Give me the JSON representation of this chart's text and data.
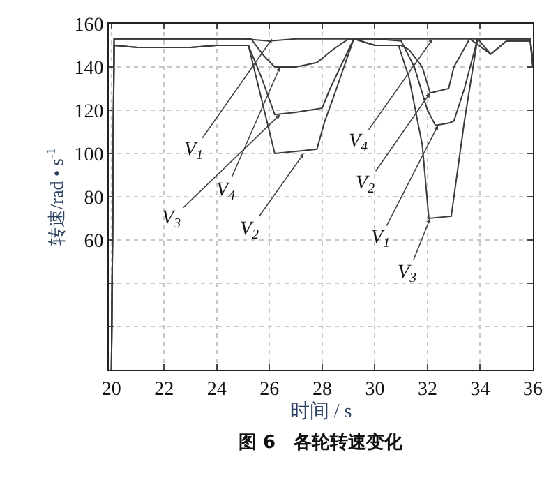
{
  "chart_data": {
    "type": "line",
    "xlabel": "时间 / s",
    "ylabel": "转速/rad • s$^{-1}$",
    "xlim": [
      19.9,
      36
    ],
    "xticks": [
      20,
      22,
      24,
      26,
      28,
      30,
      32,
      34,
      36
    ],
    "ylim": [
      0,
      160
    ],
    "yticks": [
      {
        "value": 0,
        "label": null
      },
      {
        "value": 20,
        "label": null
      },
      {
        "value": 40,
        "label": null
      },
      60,
      80,
      100,
      120,
      140,
      160
    ],
    "grid": true,
    "marker": "none",
    "line_style": "solid",
    "series": [
      {
        "color": "#3a3a3a",
        "x": [
          20,
          20.1,
          21,
          22,
          23,
          24,
          25,
          26,
          27,
          28,
          29,
          30,
          31,
          31.5,
          32,
          32.3,
          32.8,
          33.0,
          33.4,
          33.9,
          34.5,
          35,
          35.9,
          36
        ],
        "values": [
          0,
          153,
          153,
          153,
          153,
          153,
          153,
          152,
          153,
          153,
          153,
          153,
          152,
          140,
          120,
          113,
          114,
          115,
          130,
          153,
          153,
          153,
          153,
          142
        ]
      },
      {
        "color": "#3a3a3a",
        "x": [
          20,
          20.1,
          21,
          22,
          23,
          24,
          25,
          25.2,
          25.6,
          26.2,
          27,
          27.8,
          28.1,
          28.4,
          29.2,
          30,
          31,
          31.3,
          31.8,
          32.1,
          32.8,
          33.0,
          33.6,
          34.4,
          35,
          35.9,
          36
        ],
        "values": [
          0,
          150,
          149,
          149,
          149,
          150,
          150,
          150,
          130,
          100,
          101,
          102,
          115,
          125,
          153,
          150,
          150,
          148,
          140,
          128,
          130,
          140,
          153,
          146,
          152,
          152,
          140
        ]
      },
      {
        "color": "#3a3a3a",
        "x": [
          20,
          20.1,
          21,
          22,
          23,
          24,
          25,
          25.2,
          25.7,
          26.2,
          27,
          28,
          28.3,
          29.2,
          30,
          30.9,
          31.3,
          31.8,
          32.05,
          32.9,
          33.4,
          33.9,
          34.4,
          35,
          35.9,
          36
        ],
        "values": [
          0,
          150,
          149,
          149,
          149,
          150,
          150,
          150,
          135,
          118,
          119,
          121,
          130,
          153,
          150,
          150,
          135,
          104,
          70,
          71,
          115,
          153,
          146,
          152,
          152,
          140
        ]
      },
      {
        "color": "#3a3a3a",
        "x": [
          20,
          20.1,
          21,
          22,
          23,
          24,
          25,
          25.3,
          25.8,
          26.2,
          27,
          27.8,
          28.4,
          29,
          30,
          31,
          32,
          33,
          34,
          35,
          35.9,
          36
        ],
        "values": [
          0,
          153,
          153,
          153,
          153,
          153,
          153,
          153,
          145,
          140,
          140,
          142,
          148,
          153,
          153,
          153,
          153,
          153,
          153,
          153,
          153,
          142
        ]
      }
    ],
    "annotations": [
      {
        "text": "V$_{1}$",
        "x": 26.1,
        "y": 153
      },
      {
        "text": "V$_{4}$",
        "x": 32.2,
        "y": 153
      },
      {
        "text": "V$_{3}$",
        "x": 26.4,
        "y": 118
      },
      {
        "text": "V$_{2}$",
        "x": 32.1,
        "y": 128
      },
      {
        "text": "V$_{4}$",
        "x": 26.4,
        "y": 140
      },
      {
        "text": "V$_{2}$",
        "x": 27.3,
        "y": 100
      },
      {
        "text": "V$_{1}$",
        "x": 32.4,
        "y": 113
      },
      {
        "text": "V$_{3}$",
        "x": 32.1,
        "y": 70
      },
      "图 6　各轮转速变化"
    ]
  }
}
